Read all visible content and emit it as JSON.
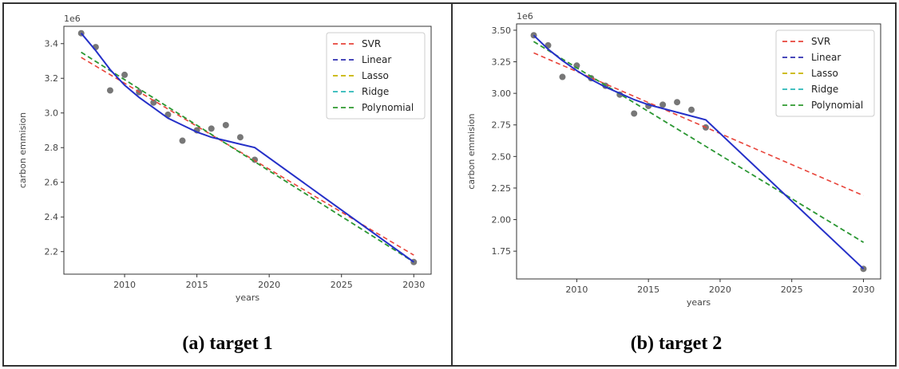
{
  "captions": [
    "(a) target 1",
    "(b) target 2"
  ],
  "chart_data": [
    {
      "type": "line",
      "xlabel": "years",
      "ylabel": "carbon emmision",
      "offset_label": "1e6",
      "xlim": [
        2005.8,
        2031.2
      ],
      "ylim": [
        2.07,
        3.5
      ],
      "xticks": [
        2010,
        2015,
        2020,
        2025,
        2030
      ],
      "yticks": [
        2.2,
        2.4,
        2.6,
        2.8,
        3.0,
        3.2,
        3.4
      ],
      "ytick_labels": [
        "2.2",
        "2.4",
        "2.6",
        "2.8",
        "3.0",
        "3.2",
        "3.4"
      ],
      "legend_position": "top-right",
      "scatter": {
        "x": [
          2007,
          2008,
          2009,
          2010,
          2011,
          2012,
          2013,
          2014,
          2015,
          2016,
          2017,
          2018,
          2019,
          2030
        ],
        "y": [
          3.46,
          3.38,
          3.13,
          3.22,
          3.12,
          3.06,
          2.99,
          2.84,
          2.9,
          2.91,
          2.93,
          2.86,
          2.73,
          2.14
        ],
        "color": "#777777"
      },
      "series": [
        {
          "name": "SVR",
          "color": "#e8443a",
          "style": "dashed",
          "x": [
            2007,
            2030
          ],
          "y": [
            3.32,
            2.18
          ]
        },
        {
          "name": "Linear",
          "color": "#2e2eb0",
          "style": "dashed",
          "x": [
            2007,
            2030
          ],
          "y": [
            3.35,
            2.14
          ]
        },
        {
          "name": "Lasso",
          "color": "#c8b400",
          "style": "dashed",
          "x": [
            2007,
            2030
          ],
          "y": [
            3.35,
            2.14
          ]
        },
        {
          "name": "Ridge",
          "color": "#2ab7b7",
          "style": "dashed",
          "x": [
            2007,
            2030
          ],
          "y": [
            3.35,
            2.14
          ]
        },
        {
          "name": "Polynomial",
          "color": "#2e9a2e",
          "style": "dashed",
          "x": [
            2007,
            2030
          ],
          "y": [
            3.35,
            2.14
          ]
        },
        {
          "name": "",
          "color": "#2530c8",
          "style": "solid",
          "x": [
            2007,
            2008,
            2009,
            2010,
            2011,
            2012,
            2013,
            2014,
            2015,
            2016,
            2017,
            2018,
            2019,
            2030
          ],
          "y": [
            3.46,
            3.36,
            3.25,
            3.16,
            3.09,
            3.03,
            2.97,
            2.93,
            2.89,
            2.86,
            2.84,
            2.82,
            2.8,
            2.14
          ]
        }
      ]
    },
    {
      "type": "line",
      "xlabel": "years",
      "ylabel": "carbon emmision",
      "offset_label": "1e6",
      "xlim": [
        2005.8,
        2031.2
      ],
      "ylim": [
        1.53,
        3.55
      ],
      "xticks": [
        2010,
        2015,
        2020,
        2025,
        2030
      ],
      "yticks": [
        1.75,
        2.0,
        2.25,
        2.5,
        2.75,
        3.0,
        3.25,
        3.5
      ],
      "ytick_labels": [
        "1.75",
        "2.00",
        "2.25",
        "2.50",
        "2.75",
        "3.00",
        "3.25",
        "3.50"
      ],
      "legend_position": "top-right",
      "scatter": {
        "x": [
          2007,
          2008,
          2009,
          2010,
          2011,
          2012,
          2013,
          2014,
          2015,
          2016,
          2017,
          2018,
          2019,
          2030
        ],
        "y": [
          3.46,
          3.38,
          3.13,
          3.22,
          3.12,
          3.06,
          2.99,
          2.84,
          2.9,
          2.91,
          2.93,
          2.87,
          2.73,
          1.61
        ],
        "color": "#777777"
      },
      "series": [
        {
          "name": "SVR",
          "color": "#e8443a",
          "style": "dashed",
          "x": [
            2007,
            2030
          ],
          "y": [
            3.32,
            2.19
          ]
        },
        {
          "name": "Linear",
          "color": "#2e2eb0",
          "style": "dashed",
          "x": [
            2007,
            2030
          ],
          "y": [
            3.41,
            1.82
          ]
        },
        {
          "name": "Lasso",
          "color": "#c8b400",
          "style": "dashed",
          "x": [
            2007,
            2030
          ],
          "y": [
            3.41,
            1.82
          ]
        },
        {
          "name": "Ridge",
          "color": "#2ab7b7",
          "style": "dashed",
          "x": [
            2007,
            2030
          ],
          "y": [
            3.41,
            1.82
          ]
        },
        {
          "name": "Polynomial",
          "color": "#2e9a2e",
          "style": "dashed",
          "x": [
            2007,
            2030
          ],
          "y": [
            3.41,
            1.82
          ]
        },
        {
          "name": "",
          "color": "#2530c8",
          "style": "solid",
          "x": [
            2007,
            2008,
            2009,
            2010,
            2011,
            2012,
            2013,
            2014,
            2015,
            2016,
            2017,
            2018,
            2019,
            2030
          ],
          "y": [
            3.46,
            3.35,
            3.26,
            3.18,
            3.11,
            3.05,
            3.0,
            2.95,
            2.91,
            2.88,
            2.85,
            2.82,
            2.79,
            1.61
          ]
        }
      ]
    }
  ]
}
